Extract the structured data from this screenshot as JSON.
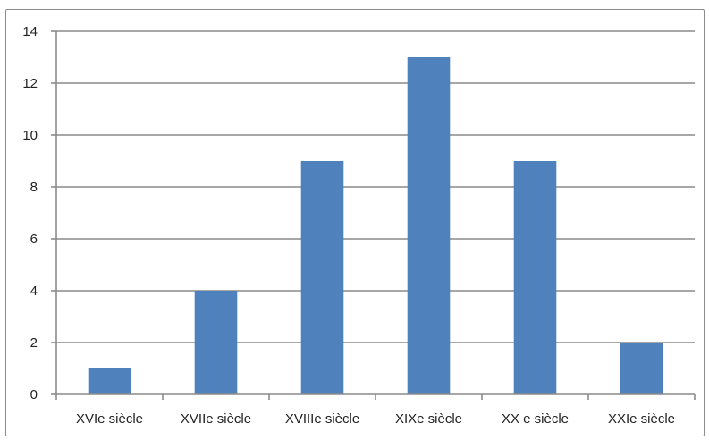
{
  "chart_data": {
    "type": "bar",
    "categories": [
      "XVIe siècle",
      "XVIIe siècle",
      "XVIIIe siècle",
      "XIXe siècle",
      "XX e siècle",
      "XXIe siècle"
    ],
    "values": [
      1,
      4,
      9,
      13,
      9,
      2
    ],
    "title": "",
    "xlabel": "",
    "ylabel": "",
    "ylim": [
      0,
      14
    ],
    "yticks": [
      0,
      2,
      4,
      6,
      8,
      10,
      12,
      14
    ],
    "grid": "horizontal",
    "legend": "none",
    "bar_color": "#4f81bd"
  }
}
